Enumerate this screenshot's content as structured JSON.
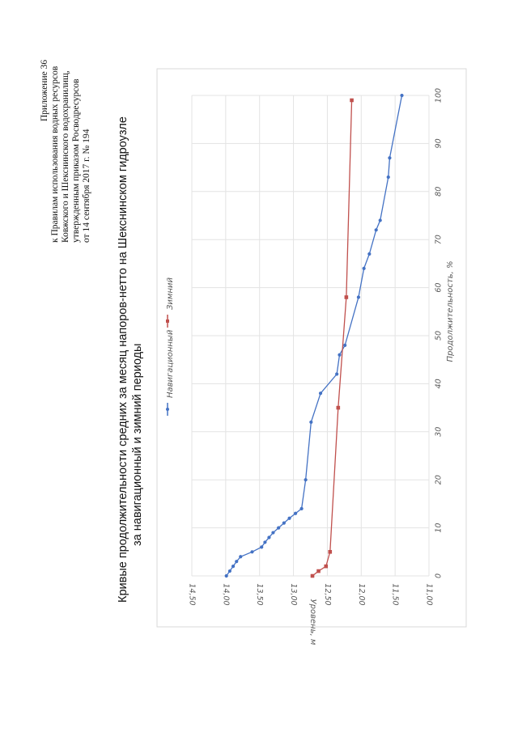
{
  "appendix": {
    "lines": [
      "Приложение 36",
      "к Правилам использования водных ресурсов",
      "Ковжского и Шекснинского водохранилищ,",
      "утвержденным приказом Росводресурсов",
      "от 14 сентября 2017 г. № 194"
    ]
  },
  "chart_data": {
    "type": "line",
    "title": [
      "Кривые продолжительности средних за месяц напоров-нетто на Шекснинском гидроузле",
      "за навигационный и зимний периоды"
    ],
    "xlabel": "Продолжительность, %",
    "ylabel": "Уровень, м",
    "xlim": [
      0,
      100
    ],
    "ylim": [
      11.0,
      14.5
    ],
    "x_ticks": [
      "0",
      "10",
      "20",
      "30",
      "40",
      "50",
      "60",
      "70",
      "80",
      "90",
      "100"
    ],
    "y_ticks": [
      "14,50",
      "14,00",
      "13,50",
      "13,00",
      "12,50",
      "12,00",
      "11,50",
      "11,00"
    ],
    "y_tick_values": [
      14.5,
      14.0,
      13.5,
      13.0,
      12.5,
      12.0,
      11.5,
      11.0
    ],
    "grid": true,
    "legend_position": "top",
    "series": [
      {
        "name": "Навигационный",
        "color": "#4472c4",
        "marker": "circle",
        "x": [
          0,
          1,
          2,
          3,
          4,
          5,
          6,
          7,
          8,
          9,
          10,
          11,
          12,
          13,
          14,
          20,
          32,
          38,
          42,
          46,
          48,
          58,
          64,
          67,
          72,
          74,
          83,
          87,
          100
        ],
        "y": [
          13.99,
          13.94,
          13.89,
          13.84,
          13.78,
          13.61,
          13.47,
          13.42,
          13.36,
          13.3,
          13.22,
          13.14,
          13.06,
          12.97,
          12.88,
          12.82,
          12.74,
          12.6,
          12.36,
          12.32,
          12.24,
          12.04,
          11.96,
          11.88,
          11.78,
          11.72,
          11.6,
          11.58,
          11.4
        ]
      },
      {
        "name": "Зимний",
        "color": "#c0504d",
        "marker": "square",
        "x": [
          0,
          1,
          2,
          5,
          35,
          58,
          99
        ],
        "y": [
          12.72,
          12.63,
          12.52,
          12.46,
          12.34,
          12.22,
          12.14
        ]
      }
    ]
  }
}
